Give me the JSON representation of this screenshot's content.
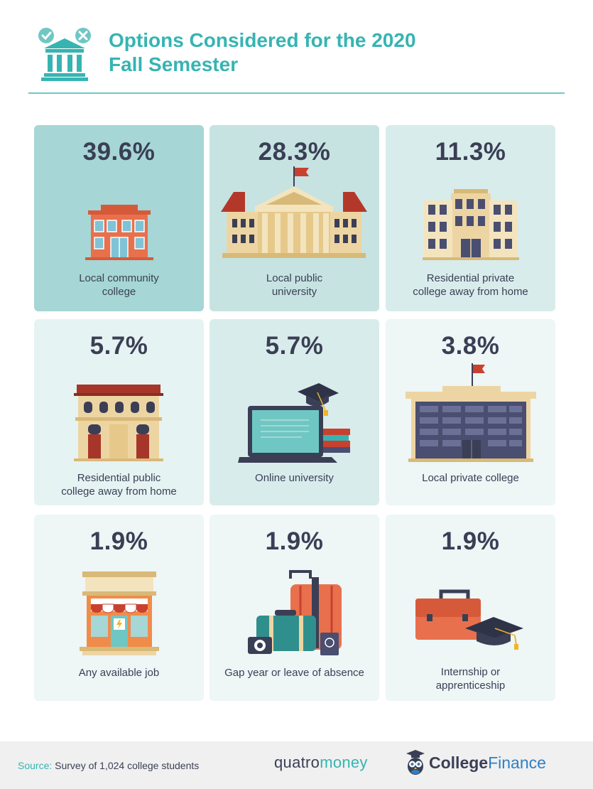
{
  "header": {
    "title_line1": "Options Considered for the 2020",
    "title_line2": "Fall Semester"
  },
  "colors": {
    "accent": "#36b4b2",
    "text": "#3a3f55",
    "card_dark": "#a6d6d5",
    "card_mid": "#c6e3e2",
    "card_light": "#d9ecec",
    "card_lighter": "#e6f3f3",
    "card_lightest": "#eef6f6"
  },
  "options": [
    {
      "percent": "39.6%",
      "label_line1": "Local community",
      "label_line2": "college",
      "icon": "community-college-building-icon"
    },
    {
      "percent": "28.3%",
      "label_line1": "Local public",
      "label_line2": "university",
      "icon": "public-university-building-icon"
    },
    {
      "percent": "11.3%",
      "label_line1": "Residential private",
      "label_line2": "college away from home",
      "icon": "private-college-building-icon"
    },
    {
      "percent": "5.7%",
      "label_line1": "Residential public",
      "label_line2": "college away from home",
      "icon": "dormitory-building-icon"
    },
    {
      "percent": "5.7%",
      "label_line1": "Online university",
      "label_line2": "",
      "icon": "laptop-graduation-cap-icon"
    },
    {
      "percent": "3.8%",
      "label_line1": "Local private college",
      "label_line2": "",
      "icon": "local-private-college-icon"
    },
    {
      "percent": "1.9%",
      "label_line1": "Any available job",
      "label_line2": "",
      "icon": "storefront-icon"
    },
    {
      "percent": "1.9%",
      "label_line1": "Gap year or leave of absence",
      "label_line2": "",
      "icon": "luggage-icon"
    },
    {
      "percent": "1.9%",
      "label_line1": "Internship or",
      "label_line2": "apprenticeship",
      "icon": "briefcase-graduation-cap-icon"
    }
  ],
  "footer": {
    "source_label": "Source:",
    "source_text": "Survey of 1,024 college students",
    "brand1_part1": "quatro",
    "brand1_part2": "money",
    "brand2_part1": "College",
    "brand2_part2": "Finance"
  }
}
